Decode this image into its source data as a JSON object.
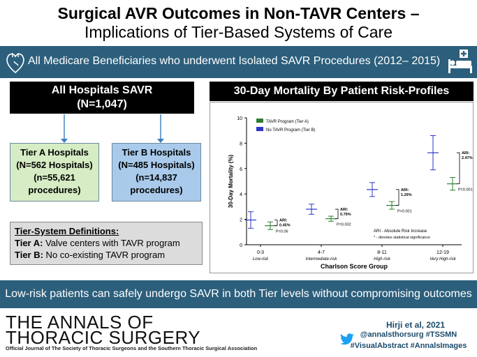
{
  "title_line1": "Surgical AVR Outcomes in Non-TAVR Centers –",
  "title_line2": "Implications of Tier-Based Systems of Care",
  "banner_text": "All Medicare Beneficiaries who underwent Isolated SAVR Procedures (2012– 2015)",
  "all_hospitals": {
    "title": "All Hospitals SAVR",
    "count": "(N=1,047)"
  },
  "tier_a": {
    "l1": "Tier A Hospitals",
    "l2": "(N=562 Hospitals)",
    "l3": "(n=55,621",
    "l4": "procedures)"
  },
  "tier_b": {
    "l1": "Tier B Hospitals",
    "l2": "(N=485 Hospitals)",
    "l3": "(n=14,837",
    "l4": "procedures)"
  },
  "definitions": {
    "heading": "Tier-System Definitions:",
    "a_label": "Tier A:",
    "a_text": " Valve centers with TAVR program",
    "b_label": "Tier B:",
    "b_text": " No co-existing TAVR program"
  },
  "chart_header": "30-Day Mortality By Patient Risk-Profiles",
  "chart_data": {
    "type": "scatter",
    "ylabel": "30-Day Mortality (%)",
    "xlabel": "Charlson Score Group",
    "ylim": [
      0,
      10
    ],
    "yticks": [
      "0",
      "2",
      "4",
      "6",
      "8",
      "10"
    ],
    "groups": [
      {
        "label": "0-3",
        "sub": "Low-risk"
      },
      {
        "label": "4-7",
        "sub": "Intermediate-risk"
      },
      {
        "label": "8-11",
        "sub": "High-risk"
      },
      {
        "label": "12-19",
        "sub": "Very High-risk"
      }
    ],
    "series": [
      {
        "name": "TAVR Program (Tier A)",
        "color": "#2e7d32",
        "mean": [
          1.5,
          2.05,
          3.1,
          4.8
        ],
        "low": [
          1.2,
          1.85,
          2.8,
          4.3
        ],
        "high": [
          1.8,
          2.25,
          3.4,
          5.3
        ]
      },
      {
        "name": "No TAVR Program (Tier B)",
        "color": "#2c36c8",
        "mean": [
          1.95,
          2.8,
          4.35,
          7.25
        ],
        "low": [
          1.3,
          2.4,
          3.8,
          5.9
        ],
        "high": [
          2.6,
          3.2,
          4.9,
          8.6
        ]
      }
    ],
    "annotations": [
      {
        "l1": "ARI:",
        "l2": "0.45%",
        "p": "P=0.06"
      },
      {
        "l1": "ARI:",
        "l2": "0.79%",
        "p": "P=0.002"
      },
      {
        "l1": "ARI:",
        "l2": "1.29%",
        "p": "P=0.001"
      },
      {
        "l1": "ARI:",
        "l2": "2.47%",
        "p": "P=0.001"
      }
    ],
    "legend_note1": "ARI - Absolute Risk Increase",
    "legend_note2": "* - denotes statistical significance",
    "legend_position": "top-left"
  },
  "bottom_banner": "Low-risk patients can safely undergo SAVR in both Tier levels without compromising outcomes",
  "journal_line1": "THE ANNALS OF",
  "journal_line2": "THORACIC SURGERY",
  "journal_sub": "Official Journal of The Society of Thoracic Surgeons and the Southern Thoracic Surgical Association",
  "citation": "Hirji et al, 2021",
  "handle": "@annalsthorsurg #TSSMN",
  "tags": "#VisualAbstract #AnnalsImages",
  "colors": {
    "banner": "#2c5f7c",
    "tier_a_bg": "#d6ecc4",
    "tier_b_bg": "#a9caeb"
  }
}
